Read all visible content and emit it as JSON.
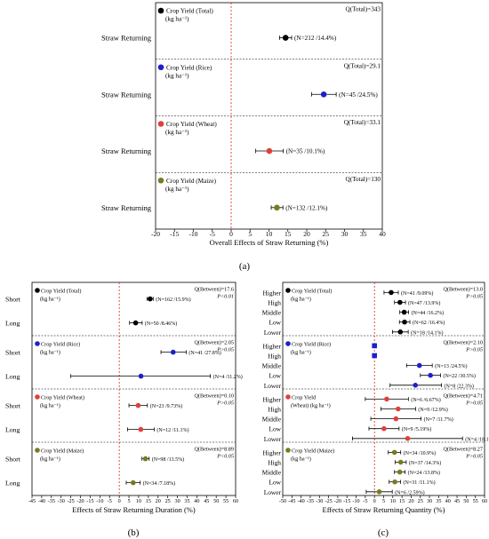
{
  "panels": [
    {
      "label": "(a)",
      "xlabel": "Overall Effects of Straw Returning (%)",
      "xlim": [
        -20,
        40
      ],
      "xticks": [
        -20,
        -15,
        -10,
        -5,
        0,
        5,
        10,
        15,
        20,
        25,
        30,
        35,
        40
      ],
      "groups": [
        {
          "title": "Crop Yield (Total)",
          "unit": "(kg ha⁻¹)",
          "color": "#000000",
          "stat1": "Q(Total)=343",
          "stat2": "",
          "rows": [
            {
              "name": "Straw Returning",
              "value": 14.4,
              "lo": 12.8,
              "hi": 16.0,
              "annot": "(N=212 /14.4%)",
              "annot_color": "#000000"
            }
          ]
        },
        {
          "title": "Crop Yield (Rice)",
          "unit": "(kg ha⁻¹)",
          "color": "#1f1fcc",
          "stat1": "Q(Total)=29.1",
          "stat2": "",
          "rows": [
            {
              "name": "Straw Returning",
              "value": 24.5,
              "lo": 21.3,
              "hi": 27.8,
              "annot": "(N=45 /24.5%)",
              "annot_color": "#000000"
            }
          ]
        },
        {
          "title": "Crop Yield (Wheat)",
          "unit": "(kg ha⁻¹)",
          "color": "#e0403a",
          "stat1": "Q(Total)=33.1",
          "stat2": "",
          "rows": [
            {
              "name": "Straw Returning",
              "value": 10.1,
              "lo": 6.5,
              "hi": 13.8,
              "annot": "(N=35 /10.1%)",
              "annot_color": "#000000"
            }
          ]
        },
        {
          "title": "Crop Yield (Maize)",
          "unit": "(kg ha⁻¹)",
          "color": "#7a7a1e",
          "stat1": "Q(Total)=130",
          "stat2": "",
          "rows": [
            {
              "name": "Straw Returning",
              "value": 12.1,
              "lo": 10.6,
              "hi": 13.7,
              "annot": "(N=132 /12.1%)",
              "annot_color": "#000000"
            }
          ]
        }
      ]
    },
    {
      "label": "(b)",
      "xlabel": "Effects of Straw Returning Duration (%)",
      "xlim": [
        -45,
        60
      ],
      "xticks": [
        -45,
        -40,
        -35,
        -30,
        -25,
        -20,
        -15,
        -10,
        -5,
        0,
        5,
        10,
        15,
        20,
        25,
        30,
        35,
        40,
        45,
        50,
        55,
        60
      ],
      "groups": [
        {
          "title": "Crop Yield (Total)",
          "unit": "(kg ha⁻¹)",
          "color": "#000000",
          "stat1": "Q(Between)=17.6",
          "stat2": "P<0.01",
          "rows": [
            {
              "name": "Short",
              "value": 15.9,
              "lo": 14.3,
              "hi": 17.5,
              "annot": "(N=162 /15.9%)",
              "annot_color": "#000000"
            },
            {
              "name": "Long",
              "value": 8.46,
              "lo": 5.3,
              "hi": 11.8,
              "annot": "(N=50 /8.46%)",
              "annot_color": "#000000"
            }
          ]
        },
        {
          "title": "Crop Yield (Rice)",
          "unit": "(kg ha⁻¹)",
          "color": "#1f1fcc",
          "stat1": "Q(Between)=2.05",
          "stat2": "P>0.05",
          "rows": [
            {
              "name": "Short",
              "value": 27.8,
              "lo": 21.5,
              "hi": 34.5,
              "annot": "(N=41 /27.8%)",
              "annot_color": "#000000"
            },
            {
              "name": "Long",
              "value": 11.2,
              "lo": -25.0,
              "hi": 47.0,
              "annot": "(N=4 /11.2%)",
              "annot_color": "#e0403a"
            }
          ]
        },
        {
          "title": "Crop Yield (Wheat)",
          "unit": "(kg ha⁻¹)",
          "color": "#e0403a",
          "stat1": "Q(Between)=0.10",
          "stat2": "P>0.05",
          "rows": [
            {
              "name": "Short",
              "value": 9.73,
              "lo": 5.0,
              "hi": 14.5,
              "annot": "(N=23 /9.73%)",
              "annot_color": "#000000"
            },
            {
              "name": "Long",
              "value": 11.1,
              "lo": 4.3,
              "hi": 18.0,
              "annot": "(N=12 /11.1%)",
              "annot_color": "#000000"
            }
          ]
        },
        {
          "title": "Crop Yield (Maize)",
          "unit": "(kg ha⁻¹)",
          "color": "#7a7a1e",
          "stat1": "Q(Between)=8.89",
          "stat2": "P<0.05",
          "rows": [
            {
              "name": "Short",
              "value": 13.5,
              "lo": 11.7,
              "hi": 15.4,
              "annot": "(N=98 /13.5%)",
              "annot_color": "#000000"
            },
            {
              "name": "Long",
              "value": 7.18,
              "lo": 3.6,
              "hi": 10.8,
              "annot": "(N=34 /7.18%)",
              "annot_color": "#000000"
            }
          ]
        }
      ]
    },
    {
      "label": "(c)",
      "xlabel": "Effects of Straw Returning Quantity (%)",
      "xlim": [
        -50,
        60
      ],
      "xticks": [
        -50,
        -45,
        -40,
        -35,
        -30,
        -25,
        -20,
        -15,
        -10,
        -5,
        0,
        5,
        10,
        15,
        20,
        25,
        30,
        35,
        40,
        45,
        50,
        55,
        60
      ],
      "groups": [
        {
          "title": "Crop Yield (Total)",
          "unit": "(kg ha⁻¹)",
          "color": "#000000",
          "stat1": "Q(Between)=13.0",
          "stat2": "P>0.05",
          "rows": [
            {
              "name": "Higher",
              "value": 9.09,
              "lo": 5.2,
              "hi": 13.0,
              "annot": "(N=41 /9.09%)",
              "annot_color": "#000000"
            },
            {
              "name": "High",
              "value": 13.9,
              "lo": 10.9,
              "hi": 16.9,
              "annot": "(N=47 /13.9%)",
              "annot_color": "#000000"
            },
            {
              "name": "Middle",
              "value": 16.2,
              "lo": 13.8,
              "hi": 18.6,
              "annot": "(N=44 /16.2%)",
              "annot_color": "#000000"
            },
            {
              "name": "Low",
              "value": 16.4,
              "lo": 13.6,
              "hi": 19.3,
              "annot": "(N=62 /16.4%)",
              "annot_color": "#000000"
            },
            {
              "name": "Lower",
              "value": 14.1,
              "lo": 9.8,
              "hi": 18.4,
              "annot": "(N=18 /14.1%)",
              "annot_color": "#000000"
            }
          ]
        },
        {
          "title": "Crop Yield (Rice)",
          "unit": "(kg ha⁻¹)",
          "color": "#1f1fcc",
          "stat1": "Q(Between)=2.10",
          "stat2": "P>0.05",
          "rows": [
            {
              "name": "Higher",
              "value": 0,
              "lo": -1.5,
              "hi": 1.5,
              "annot": "",
              "annot_color": "#000000",
              "square": true
            },
            {
              "name": "High",
              "value": 0,
              "lo": -1.5,
              "hi": 1.5,
              "annot": "",
              "annot_color": "#000000",
              "square": true
            },
            {
              "name": "Middle",
              "value": 24.5,
              "lo": 17.5,
              "hi": 31.5,
              "annot": "(N=13 /24.5%)",
              "annot_color": "#000000"
            },
            {
              "name": "Low",
              "value": 30.5,
              "lo": 25.0,
              "hi": 36.0,
              "annot": "(N=22 /30.5%)",
              "annot_color": "#000000"
            },
            {
              "name": "Lower",
              "value": 22.3,
              "lo": 8.5,
              "hi": 36.5,
              "annot": "(N=8 /22.3%)",
              "annot_color": "#000000"
            }
          ]
        },
        {
          "title": "Crop Yield",
          "title2": "(Wheat) (kg ha⁻¹)",
          "unit": "",
          "color": "#e0403a",
          "stat1": "Q(Between)=4.71",
          "stat2": "P>0.05",
          "rows": [
            {
              "name": "Higher",
              "value": 6.67,
              "lo": -5.0,
              "hi": 18.5,
              "annot": "(N=6 /6.67%)",
              "annot_color": "#e0403a"
            },
            {
              "name": "High",
              "value": 12.9,
              "lo": 3.5,
              "hi": 22.4,
              "annot": "(N=9 /12.9%)",
              "annot_color": "#000000"
            },
            {
              "name": "Middle",
              "value": 11.7,
              "lo": -2.0,
              "hi": 25.4,
              "annot": "(N=7 /11.7%)",
              "annot_color": "#e0403a"
            },
            {
              "name": "Low",
              "value": 5.19,
              "lo": -3.0,
              "hi": 13.4,
              "annot": "(N=9 /5.19%)",
              "annot_color": "#000000"
            },
            {
              "name": "Lower",
              "value": 18.1,
              "lo": -12.0,
              "hi": 48.0,
              "annot": "(N=4 /18.1%)",
              "annot_color": "#e0403a"
            }
          ]
        },
        {
          "title": "Crop Yield (Maize)",
          "unit": "(kg ha⁻¹)",
          "color": "#7a7a1e",
          "stat1": "Q(Between)=8.27",
          "stat2": "P>0.05",
          "rows": [
            {
              "name": "Higher",
              "value": 10.9,
              "lo": 7.5,
              "hi": 14.3,
              "annot": "(N=34 /10.9%)",
              "annot_color": "#000000"
            },
            {
              "name": "High",
              "value": 14.3,
              "lo": 11.3,
              "hi": 17.3,
              "annot": "(N=37 /14.3%)",
              "annot_color": "#000000"
            },
            {
              "name": "Middle",
              "value": 13.8,
              "lo": 10.9,
              "hi": 16.7,
              "annot": "(N=24 /13.8%)",
              "annot_color": "#000000"
            },
            {
              "name": "Low",
              "value": 11.1,
              "lo": 8.0,
              "hi": 14.2,
              "annot": "(N=31 /11.1%)",
              "annot_color": "#000000"
            },
            {
              "name": "Lower",
              "value": 2.59,
              "lo": -4.5,
              "hi": 9.7,
              "annot": "(N=6 /2.59%)",
              "annot_color": "#000000"
            }
          ]
        }
      ]
    }
  ],
  "chart_data": [
    {
      "type": "scatter",
      "xlabel": "Overall Effects of Straw Returning (%)",
      "xlim": [
        -20,
        40
      ],
      "series": [
        {
          "name": "Crop Yield (Total)",
          "values": [
            14.4
          ]
        },
        {
          "name": "Crop Yield (Rice)",
          "values": [
            24.5
          ]
        },
        {
          "name": "Crop Yield (Wheat)",
          "values": [
            10.1
          ]
        },
        {
          "name": "Crop Yield (Maize)",
          "values": [
            12.1
          ]
        }
      ],
      "categories": [
        "Straw Returning"
      ]
    },
    {
      "type": "scatter",
      "xlabel": "Effects of Straw Returning Duration (%)",
      "xlim": [
        -45,
        60
      ],
      "categories": [
        "Short",
        "Long"
      ],
      "series": [
        {
          "name": "Crop Yield (Total)",
          "values": [
            15.9,
            8.46
          ]
        },
        {
          "name": "Crop Yield (Rice)",
          "values": [
            27.8,
            11.2
          ]
        },
        {
          "name": "Crop Yield (Wheat)",
          "values": [
            9.73,
            11.1
          ]
        },
        {
          "name": "Crop Yield (Maize)",
          "values": [
            13.5,
            7.18
          ]
        }
      ]
    },
    {
      "type": "scatter",
      "xlabel": "Effects of Straw Returning Quantity (%)",
      "xlim": [
        -50,
        60
      ],
      "categories": [
        "Higher",
        "High",
        "Middle",
        "Low",
        "Lower"
      ],
      "series": [
        {
          "name": "Crop Yield (Total)",
          "values": [
            9.09,
            13.9,
            16.2,
            16.4,
            14.1
          ]
        },
        {
          "name": "Crop Yield (Rice)",
          "values": [
            null,
            null,
            24.5,
            30.5,
            22.3
          ]
        },
        {
          "name": "Crop Yield (Wheat)",
          "values": [
            6.67,
            12.9,
            11.7,
            5.19,
            18.1
          ]
        },
        {
          "name": "Crop Yield (Maize)",
          "values": [
            10.9,
            14.3,
            13.8,
            11.1,
            2.59
          ]
        }
      ]
    }
  ]
}
